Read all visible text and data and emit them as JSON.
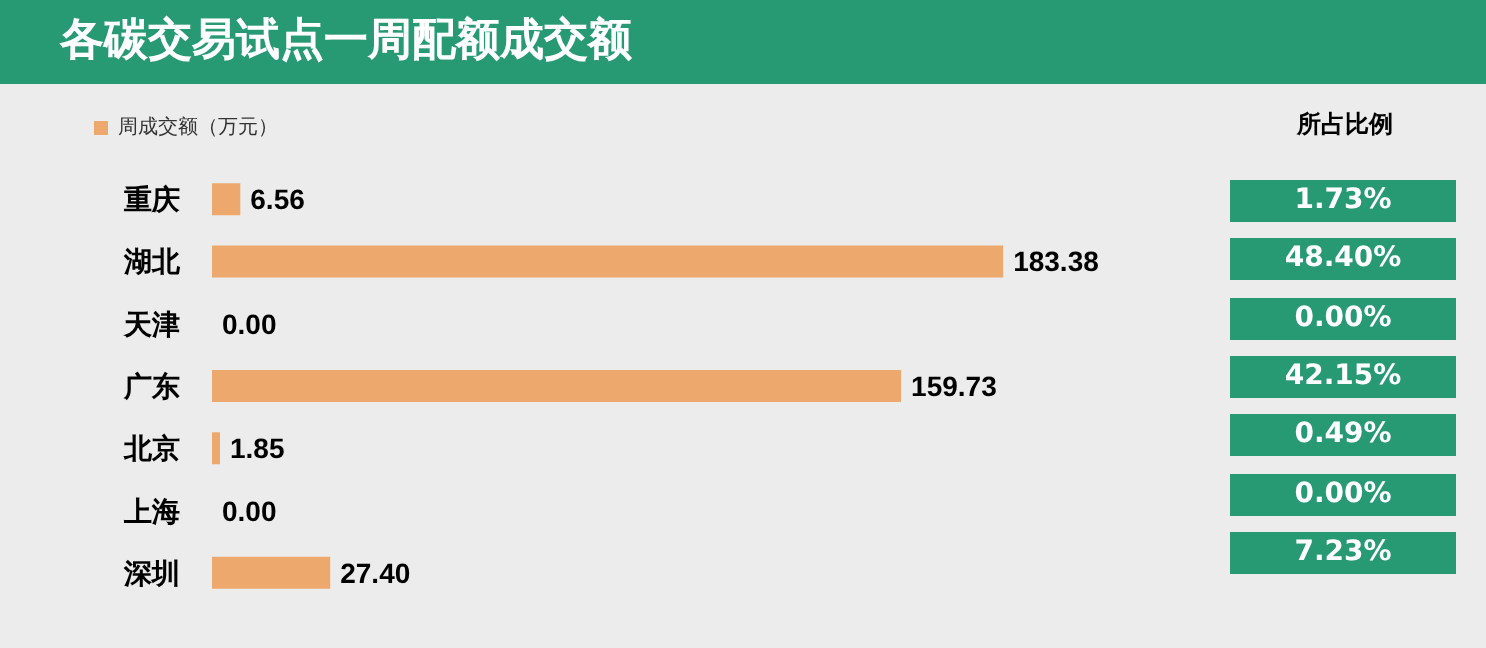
{
  "chart_data": [
    {
      "type": "bar",
      "title": "各碳交易试点一周配额成交额",
      "orientation": "horizontal",
      "categories": [
        "重庆",
        "湖北",
        "天津",
        "广东",
        "北京",
        "上海",
        "深圳"
      ],
      "series": [
        {
          "name": "周成交额（万元）",
          "color": "#eda86d",
          "values": [
            6.56,
            183.38,
            0.0,
            159.73,
            1.85,
            0.0,
            27.4
          ],
          "value_labels": [
            "6.56",
            "183.38",
            "0.00",
            "159.73",
            "1.85",
            "0.00",
            "27.40"
          ]
        }
      ],
      "legend": "top left"
    },
    {
      "type": "other",
      "title": "所占比例",
      "annotations": [
        "1.73%",
        "48.40%",
        "0.00%",
        "42.15%",
        "0.49%",
        "0.00%",
        "7.23%"
      ]
    }
  ]
}
